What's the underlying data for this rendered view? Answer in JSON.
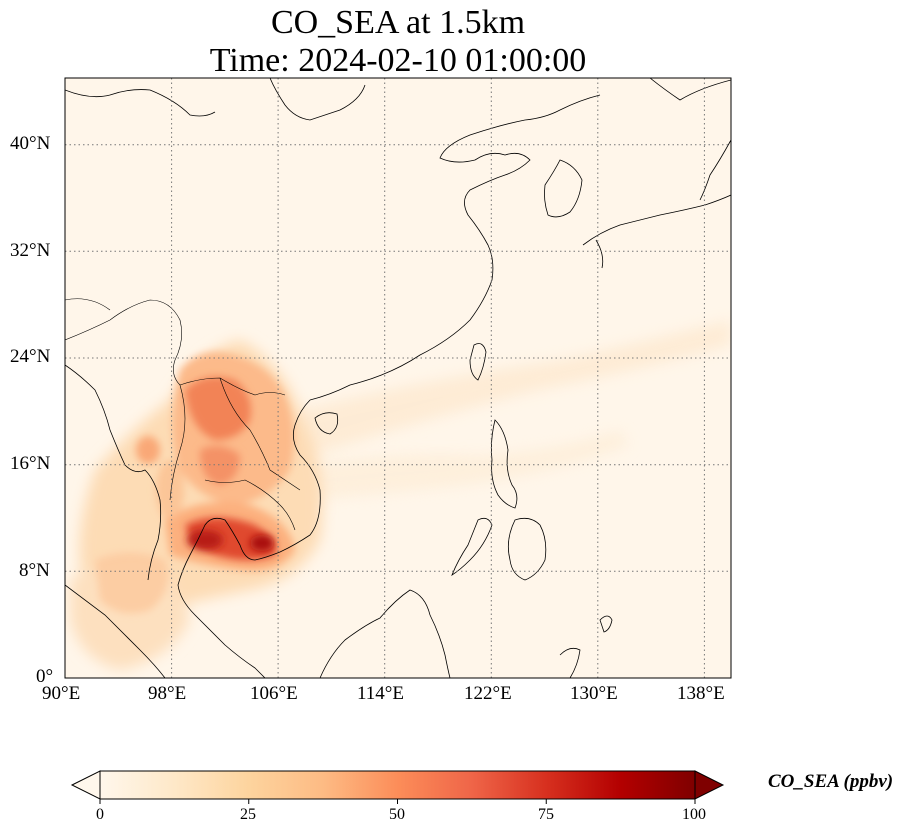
{
  "title": {
    "line1": "CO_SEA at 1.5km",
    "line2": "Time: 2024-02-10 01:00:00"
  },
  "map": {
    "lon_ticks": [
      "90°E",
      "98°E",
      "106°E",
      "114°E",
      "122°E",
      "130°E",
      "138°E"
    ],
    "lat_ticks": [
      "0°",
      "8°N",
      "16°N",
      "24°N",
      "32°N",
      "40°N"
    ],
    "lon_range": [
      90,
      140
    ],
    "lat_range": [
      0,
      45
    ],
    "gridlines": "dotted",
    "colormap": "OrRd",
    "background_color": "#fff6ea",
    "coastline_color": "#000000"
  },
  "colorbar": {
    "ticks": [
      "0",
      "25",
      "50",
      "75",
      "100"
    ],
    "range": [
      0,
      100
    ],
    "label": "CO_SEA (ppbv)",
    "extend": "both",
    "colors": [
      "#fff7ec",
      "#fee8c8",
      "#fdd49e",
      "#fdbb84",
      "#fc8d59",
      "#ef6548",
      "#d7301f",
      "#b30000",
      "#7f0000"
    ]
  }
}
